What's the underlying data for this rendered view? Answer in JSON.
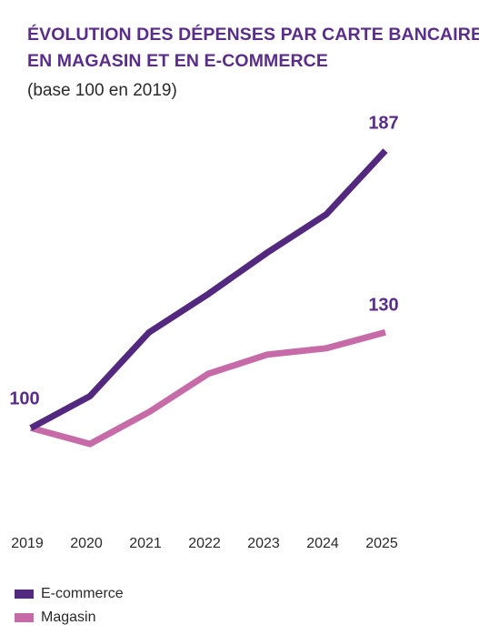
{
  "title_line1": "ÉVOLUTION DES DÉPENSES PAR CARTE BANCAIRE",
  "title_line2": "EN MAGASIN ET EN E-COMMERCE",
  "subtitle": "(base 100 en 2019)",
  "colors": {
    "ecommerce": "#53287f",
    "magasin": "#c76aa8",
    "title": "#5a2d8a"
  },
  "chart_data": {
    "type": "line",
    "title": "ÉVOLUTION DES DÉPENSES PAR CARTE BANCAIRE EN MAGASIN ET EN E-COMMERCE",
    "subtitle": "(base 100 en 2019)",
    "x": [
      "2019",
      "2020",
      "2021",
      "2022",
      "2023",
      "2024",
      "2025"
    ],
    "ylim": [
      85,
      200
    ],
    "grid": false,
    "legend": "bottom-left",
    "series": [
      {
        "name": "E-commerce",
        "color": "#53287f",
        "values": [
          100,
          110,
          130,
          142,
          155,
          167,
          187
        ],
        "end_label": "187"
      },
      {
        "name": "Magasin",
        "color": "#c76aa8",
        "values": [
          100,
          95,
          105,
          117,
          123,
          125,
          130
        ],
        "end_label": "130"
      }
    ],
    "start_label": "100"
  }
}
